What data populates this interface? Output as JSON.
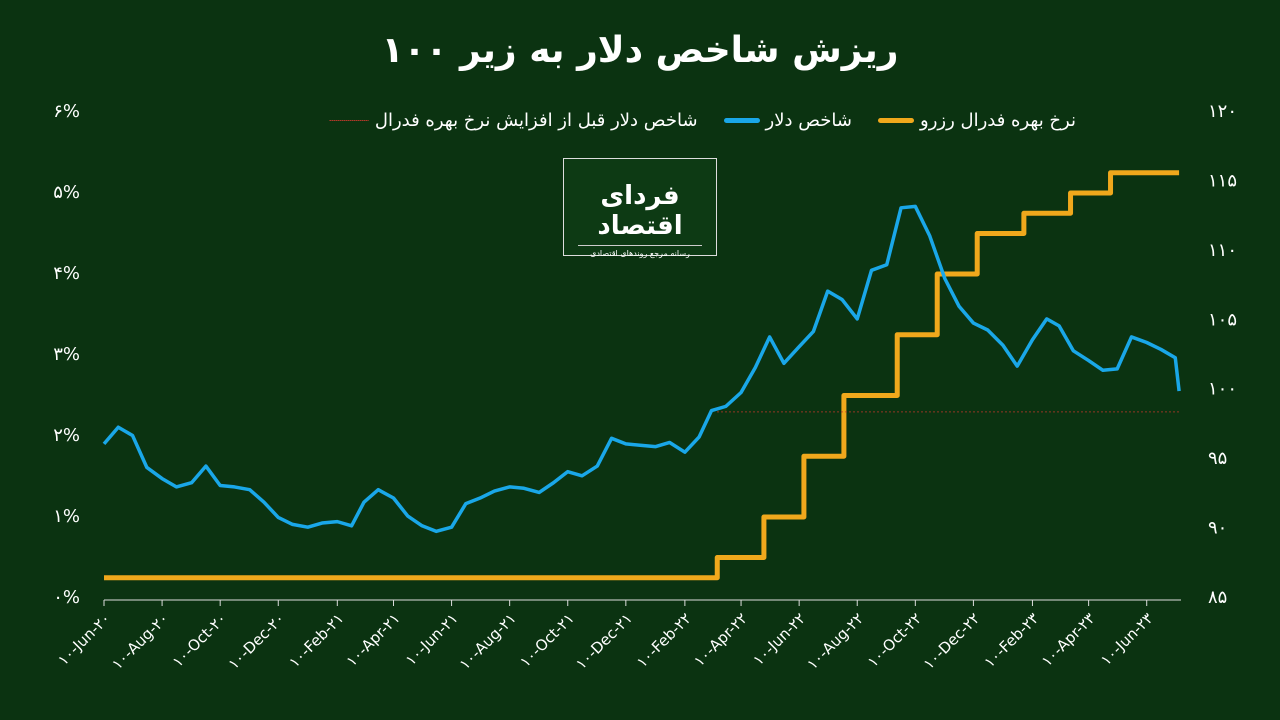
{
  "chart_data": {
    "type": "line",
    "title": "ریزش شاخص دلار به زیر ۱۰۰",
    "xlim": [
      "2020-06-10",
      "2023-07-16"
    ],
    "xticks": [
      {
        "value": "2020-06-10",
        "label": "۱۰-Jun-۲۰"
      },
      {
        "value": "2020-08-10",
        "label": "۱۰-Aug-۲۰"
      },
      {
        "value": "2020-10-10",
        "label": "۱۰-Oct-۲۰"
      },
      {
        "value": "2020-12-10",
        "label": "۱۰-Dec-۲۰"
      },
      {
        "value": "2021-02-10",
        "label": "۱۰-Feb-۲۱"
      },
      {
        "value": "2021-04-10",
        "label": "۱۰-Apr-۲۱"
      },
      {
        "value": "2021-06-10",
        "label": "۱۰-Jun-۲۱"
      },
      {
        "value": "2021-08-10",
        "label": "۱۰-Aug-۲۱"
      },
      {
        "value": "2021-10-10",
        "label": "۱۰-Oct-۲۱"
      },
      {
        "value": "2021-12-10",
        "label": "۱۰-Dec-۲۱"
      },
      {
        "value": "2022-02-10",
        "label": "۱۰-Feb-۲۲"
      },
      {
        "value": "2022-04-10",
        "label": "۱۰-Apr-۲۲"
      },
      {
        "value": "2022-06-10",
        "label": "۱۰-Jun-۲۲"
      },
      {
        "value": "2022-08-10",
        "label": "۱۰-Aug-۲۲"
      },
      {
        "value": "2022-10-10",
        "label": "۱۰-Oct-۲۲"
      },
      {
        "value": "2022-12-10",
        "label": "۱۰-Dec-۲۲"
      },
      {
        "value": "2023-02-10",
        "label": "۱۰-Feb-۲۳"
      },
      {
        "value": "2023-04-10",
        "label": "۱۰-Apr-۲۳"
      },
      {
        "value": "2023-06-10",
        "label": "۱۰-Jun-۲۳"
      }
    ],
    "ylim": [
      0,
      6
    ],
    "yticks": [
      {
        "value": 0,
        "label": "۰%"
      },
      {
        "value": 1,
        "label": "۱%"
      },
      {
        "value": 2,
        "label": "۲%"
      },
      {
        "value": 3,
        "label": "۳%"
      },
      {
        "value": 4,
        "label": "۴%"
      },
      {
        "value": 5,
        "label": "۵%"
      },
      {
        "value": 6,
        "label": "۶%"
      }
    ],
    "y2lim": [
      85,
      120
    ],
    "y2ticks": [
      {
        "value": 85,
        "label": "۸۵"
      },
      {
        "value": 90,
        "label": "۹۰"
      },
      {
        "value": 95,
        "label": "۹۵"
      },
      {
        "value": 100,
        "label": "۱۰۰"
      },
      {
        "value": 105,
        "label": "۱۰۵"
      },
      {
        "value": 110,
        "label": "۱۱۰"
      },
      {
        "value": 115,
        "label": "۱۱۵"
      },
      {
        "value": 120,
        "label": "۱۲۰"
      }
    ],
    "series": [
      {
        "name": "نرخ بهره فدرال رزرو",
        "color": "#f0a81c",
        "step": true,
        "width": 5,
        "x": [
          "2020-06-10",
          "2022-03-16",
          "2022-05-04",
          "2022-06-15",
          "2022-07-27",
          "2022-09-21",
          "2022-11-02",
          "2022-12-14",
          "2023-02-01",
          "2023-03-22",
          "2023-05-03",
          "2023-07-14"
        ],
        "values": [
          0.25,
          0.5,
          1.0,
          1.75,
          2.5,
          3.25,
          4.0,
          4.5,
          4.75,
          5.0,
          5.25,
          5.25
        ]
      },
      {
        "name": "شاخص دلار",
        "color": "#1aa7e8",
        "axis": "y2",
        "width": 3.5,
        "x": [
          "2020-06-10",
          "2020-06-25",
          "2020-07-10",
          "2020-07-25",
          "2020-08-10",
          "2020-08-25",
          "2020-09-10",
          "2020-09-25",
          "2020-10-10",
          "2020-10-25",
          "2020-11-10",
          "2020-11-25",
          "2020-12-10",
          "2020-12-25",
          "2021-01-10",
          "2021-01-25",
          "2021-02-10",
          "2021-02-25",
          "2021-03-10",
          "2021-03-25",
          "2021-04-10",
          "2021-04-25",
          "2021-05-10",
          "2021-05-25",
          "2021-06-10",
          "2021-06-25",
          "2021-07-10",
          "2021-07-25",
          "2021-08-10",
          "2021-08-25",
          "2021-09-10",
          "2021-09-25",
          "2021-10-10",
          "2021-10-25",
          "2021-11-10",
          "2021-11-25",
          "2021-12-10",
          "2021-12-25",
          "2022-01-10",
          "2022-01-25",
          "2022-02-10",
          "2022-02-25",
          "2022-03-10",
          "2022-03-25",
          "2022-04-10",
          "2022-04-25",
          "2022-05-10",
          "2022-05-25",
          "2022-06-10",
          "2022-06-25",
          "2022-07-10",
          "2022-07-25",
          "2022-08-10",
          "2022-08-25",
          "2022-09-10",
          "2022-09-25",
          "2022-10-10",
          "2022-10-25",
          "2022-11-10",
          "2022-11-25",
          "2022-12-10",
          "2022-12-25",
          "2023-01-10",
          "2023-01-25",
          "2023-02-10",
          "2023-02-25",
          "2023-03-10",
          "2023-03-25",
          "2023-04-10",
          "2023-04-25",
          "2023-05-10",
          "2023-05-25",
          "2023-06-10",
          "2023-06-25",
          "2023-07-10",
          "2023-07-14"
        ],
        "values": [
          96.1,
          97.3,
          96.7,
          94.4,
          93.6,
          93.0,
          93.3,
          94.5,
          93.1,
          93.0,
          92.8,
          91.9,
          90.8,
          90.3,
          90.1,
          90.4,
          90.5,
          90.2,
          91.9,
          92.8,
          92.2,
          90.9,
          90.2,
          89.8,
          90.1,
          91.8,
          92.2,
          92.7,
          93.0,
          92.9,
          92.6,
          93.3,
          94.1,
          93.8,
          94.5,
          96.5,
          96.1,
          96.0,
          95.9,
          96.2,
          95.5,
          96.6,
          98.5,
          98.8,
          99.8,
          101.6,
          103.8,
          101.9,
          103.1,
          104.2,
          107.1,
          106.5,
          105.1,
          108.6,
          109.0,
          113.1,
          113.2,
          111.1,
          108.0,
          106.0,
          104.8,
          104.3,
          103.2,
          101.7,
          103.6,
          105.1,
          104.6,
          102.8,
          102.1,
          101.4,
          101.5,
          103.8,
          103.4,
          102.9,
          102.3,
          99.9
        ]
      },
      {
        "name": "شاخص دلار قبل از افزایش نرخ بهره فدرال",
        "color": "#c0392b",
        "axis": "y2",
        "dotted": true,
        "width": 1,
        "x": [
          "2022-03-16",
          "2023-07-14"
        ],
        "values": [
          98.4,
          98.4
        ]
      }
    ]
  },
  "logo": {
    "title": "فردای اقتصاد",
    "tagline": "رسانه مرجع روندهای اقتصادی"
  }
}
